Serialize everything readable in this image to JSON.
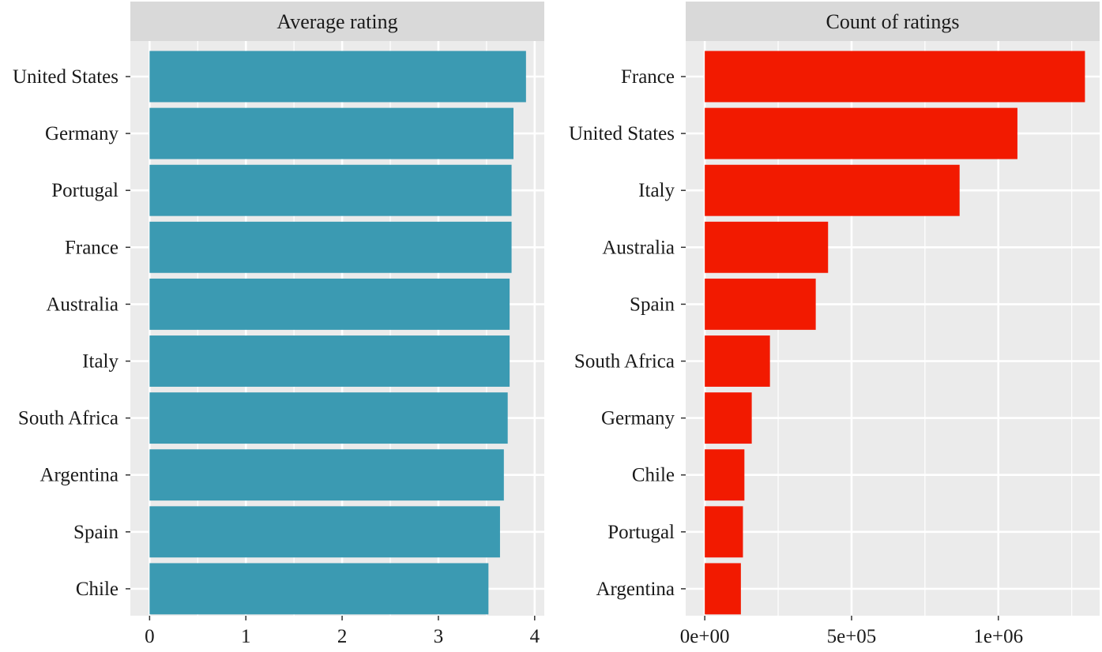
{
  "chart_data": [
    {
      "type": "bar",
      "orientation": "horizontal",
      "title": "Average rating",
      "xlabel": "",
      "ylabel": "",
      "color": "#3B9AB2",
      "categories": [
        "United States",
        "Germany",
        "Portugal",
        "France",
        "Australia",
        "Italy",
        "South Africa",
        "Argentina",
        "Spain",
        "Chile"
      ],
      "values": [
        3.91,
        3.78,
        3.76,
        3.76,
        3.74,
        3.74,
        3.72,
        3.68,
        3.64,
        3.52
      ],
      "xlim": [
        -0.2,
        4.1
      ],
      "xticks": [
        0,
        1,
        2,
        3,
        4
      ],
      "xtick_labels": [
        "0",
        "1",
        "2",
        "3",
        "4"
      ],
      "grid": true
    },
    {
      "type": "bar",
      "orientation": "horizontal",
      "title": "Count of ratings",
      "xlabel": "",
      "ylabel": "",
      "color": "#F21A00",
      "categories": [
        "France",
        "United States",
        "Italy",
        "Australia",
        "Spain",
        "South Africa",
        "Germany",
        "Chile",
        "Portugal",
        "Argentina"
      ],
      "values": [
        1295000,
        1065000,
        868000,
        420000,
        378000,
        222000,
        160000,
        135000,
        130000,
        123000
      ],
      "xlim": [
        -65000,
        1345000
      ],
      "xticks": [
        0,
        500000,
        1000000
      ],
      "xtick_labels": [
        "0e+00",
        "5e+05",
        "1e+06"
      ],
      "grid": true
    }
  ]
}
